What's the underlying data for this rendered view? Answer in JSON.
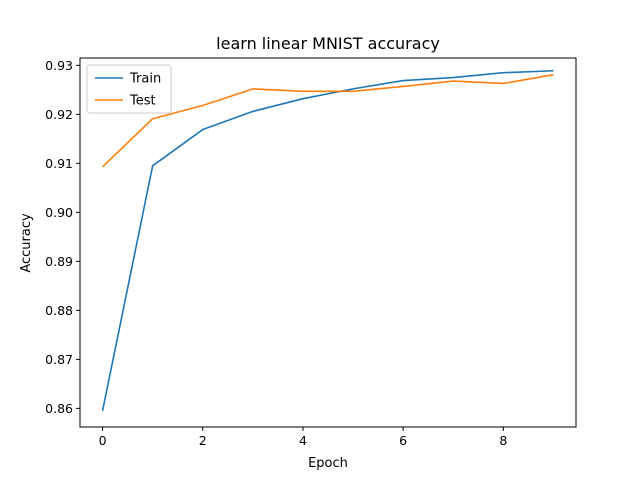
{
  "chart_data": {
    "type": "line",
    "title": "learn linear MNIST accuracy",
    "xlabel": "Epoch",
    "ylabel": "Accuracy",
    "x": [
      0,
      1,
      2,
      3,
      4,
      5,
      6,
      7,
      8,
      9
    ],
    "xlim": [
      -0.45,
      9.45
    ],
    "ylim": [
      0.8562,
      0.9315
    ],
    "xticks": [
      0,
      2,
      4,
      6,
      8
    ],
    "yticks": [
      0.86,
      0.87,
      0.88,
      0.89,
      0.9,
      0.91,
      0.92,
      0.93
    ],
    "xtick_labels": [
      "0",
      "2",
      "4",
      "6",
      "8"
    ],
    "ytick_labels": [
      "0.86",
      "0.87",
      "0.88",
      "0.89",
      "0.90",
      "0.91",
      "0.92",
      "0.93"
    ],
    "grid": false,
    "legend_position": "top-left",
    "series": [
      {
        "name": "Train",
        "color": "#1f77b4",
        "values": [
          0.8595,
          0.9095,
          0.9169,
          0.9206,
          0.9232,
          0.9252,
          0.9269,
          0.9275,
          0.9285,
          0.9289
        ]
      },
      {
        "name": "Test",
        "color": "#ff7f0e",
        "values": [
          0.9093,
          0.9191,
          0.9218,
          0.9252,
          0.9247,
          0.9247,
          0.9257,
          0.9268,
          0.9263,
          0.9281
        ]
      }
    ]
  }
}
